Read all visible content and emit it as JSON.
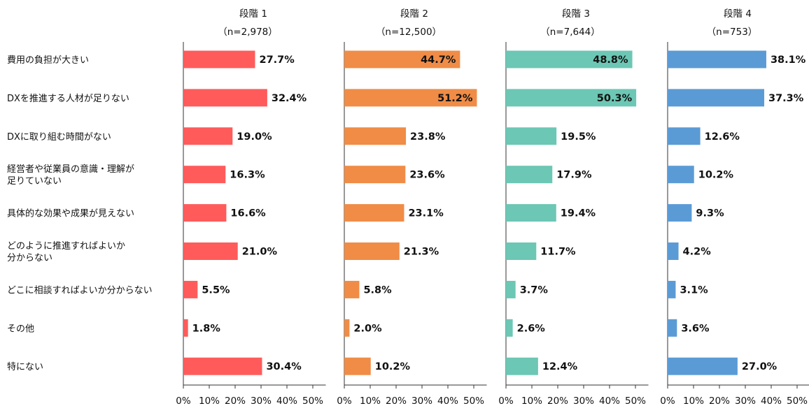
{
  "chart_data": {
    "type": "bar",
    "orientation": "horizontal",
    "categories": [
      [
        "費用の負担が大きい"
      ],
      [
        "DXを推進する人材が足りない"
      ],
      [
        "DXに取り組む時間がない"
      ],
      [
        "経営者や従業員の意識・理解が",
        "足りていない"
      ],
      [
        "具体的な効果や成果が見えない"
      ],
      [
        "どのように推進すればよいか",
        "分からない"
      ],
      [
        "どこに相談すればよいか分からない"
      ],
      [
        "その他"
      ],
      [
        "特にない"
      ]
    ],
    "xlim": [
      0,
      55
    ],
    "x_ticks": [
      "0%",
      "10%",
      "20%",
      "30%",
      "40%",
      "50%"
    ],
    "grid": false,
    "series": [
      {
        "name": "段階 1",
        "n": "（n=2,978）",
        "color": "#FF5B5B",
        "values": [
          27.7,
          32.4,
          19.0,
          16.3,
          16.6,
          21.0,
          5.5,
          1.8,
          30.4
        ]
      },
      {
        "name": "段階 2",
        "n": "（n=12,500）",
        "color": "#F08C46",
        "values": [
          44.7,
          51.2,
          23.8,
          23.6,
          23.1,
          21.3,
          5.8,
          2.0,
          10.2
        ]
      },
      {
        "name": "段階 3",
        "n": "（n=7,644）",
        "color": "#6CC7B4",
        "values": [
          48.8,
          50.3,
          19.5,
          17.9,
          19.4,
          11.7,
          3.7,
          2.6,
          12.4
        ]
      },
      {
        "name": "段階 4",
        "n": "（n=753）",
        "color": "#5B9BD5",
        "values": [
          38.1,
          37.3,
          12.6,
          10.2,
          9.3,
          4.2,
          3.1,
          3.6,
          27.0
        ]
      }
    ]
  }
}
